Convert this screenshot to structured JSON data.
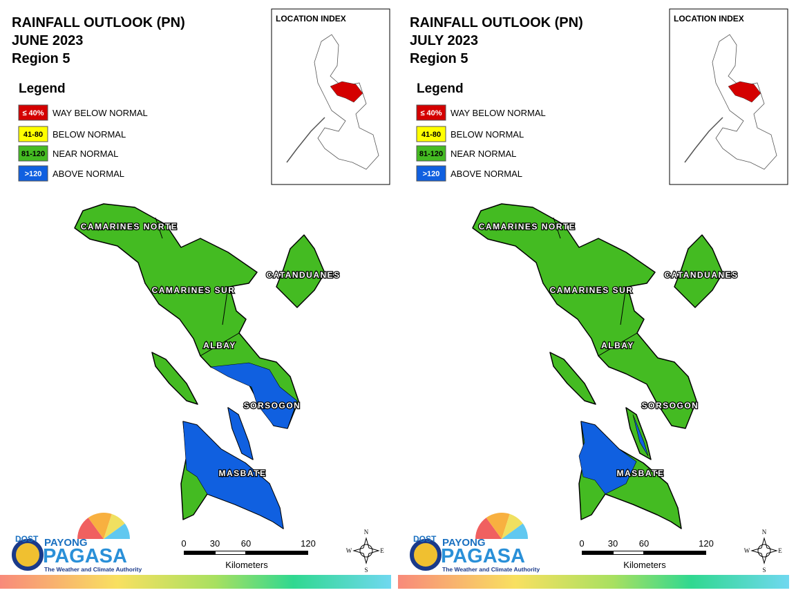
{
  "panels": [
    {
      "title": [
        "RAINFALL OUTLOOK (PN)",
        "JUNE 2023",
        "Region 5"
      ],
      "legend_title": "Legend",
      "legend": [
        {
          "range": "≤ 40%",
          "label": "WAY BELOW NORMAL",
          "color": "#d40000",
          "text_color": "#ffffff"
        },
        {
          "range": "41-80",
          "label": "BELOW NORMAL",
          "color": "#ffff00",
          "text_color": "#000000"
        },
        {
          "range": "81-120",
          "label": "NEAR NORMAL",
          "color": "#44bb22",
          "text_color": "#000000"
        },
        {
          "range": ">120",
          "label": "ABOVE NORMAL",
          "color": "#1060e0",
          "text_color": "#ffffff"
        }
      ],
      "location_index": "LOCATION INDEX",
      "provinces": [
        "CAMARINES NORTE",
        "CATANDUANES",
        "CAMARINES SUR",
        "ALBAY",
        "SORSOGON",
        "MASBATE"
      ],
      "scale": {
        "ticks": [
          0,
          30,
          60,
          120
        ],
        "unit": "Kilometers"
      },
      "compass": {
        "n": "N",
        "e": "E",
        "s": "S",
        "w": "W"
      },
      "logo": {
        "dost": "DOST",
        "payong": "PAYONG",
        "pagasa": "PAGASA",
        "tagline": "The Weather and Climate Authority"
      }
    },
    {
      "title": [
        "RAINFALL OUTLOOK (PN)",
        "JULY 2023",
        "Region 5"
      ],
      "legend_title": "Legend",
      "legend": [
        {
          "range": "≤ 40%",
          "label": "WAY BELOW NORMAL",
          "color": "#d40000",
          "text_color": "#ffffff"
        },
        {
          "range": "41-80",
          "label": "BELOW NORMAL",
          "color": "#ffff00",
          "text_color": "#000000"
        },
        {
          "range": "81-120",
          "label": "NEAR NORMAL",
          "color": "#44bb22",
          "text_color": "#000000"
        },
        {
          "range": ">120",
          "label": "ABOVE NORMAL",
          "color": "#1060e0",
          "text_color": "#ffffff"
        }
      ],
      "location_index": "LOCATION INDEX",
      "provinces": [
        "CAMARINES NORTE",
        "CATANDUANES",
        "CAMARINES SUR",
        "ALBAY",
        "SORSOGON",
        "MASBATE"
      ],
      "scale": {
        "ticks": [
          0,
          30,
          60,
          120
        ],
        "unit": "Kilometers"
      },
      "compass": {
        "n": "N",
        "e": "E",
        "s": "S",
        "w": "W"
      },
      "logo": {
        "dost": "DOST",
        "payong": "PAYONG",
        "pagasa": "PAGASA",
        "tagline": "The Weather and Climate Authority"
      }
    }
  ]
}
